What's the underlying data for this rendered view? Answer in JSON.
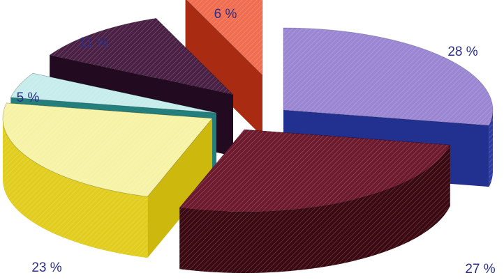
{
  "chart_data": {
    "type": "pie",
    "style": "3d-exploded",
    "title": "",
    "legend": "none",
    "slices": [
      {
        "label": "28 %",
        "value": 28,
        "top": "#9a86d2",
        "side": "#2b3aa8",
        "inner": "#223090"
      },
      {
        "label": "27 %",
        "value": 27,
        "top": "#6e1a2e",
        "side": "#3b0912",
        "inner": "#2e0710"
      },
      {
        "label": "23 %",
        "value": 23,
        "top": "#f7f3a6",
        "side": "#e1cd1e",
        "inner": "#cdb90e"
      },
      {
        "label": "5 %",
        "value": 5,
        "top": "#c6ecec",
        "side": "#2d9a98",
        "inner": "#237e7c"
      },
      {
        "label": "11 %",
        "value": 11,
        "top": "#4a2045",
        "side": "#2c0f29",
        "inner": "#220a20"
      },
      {
        "label": "6 %",
        "value": 6,
        "top": "#f06d50",
        "side": "#c7391c",
        "inner": "#a92b12"
      }
    ]
  }
}
